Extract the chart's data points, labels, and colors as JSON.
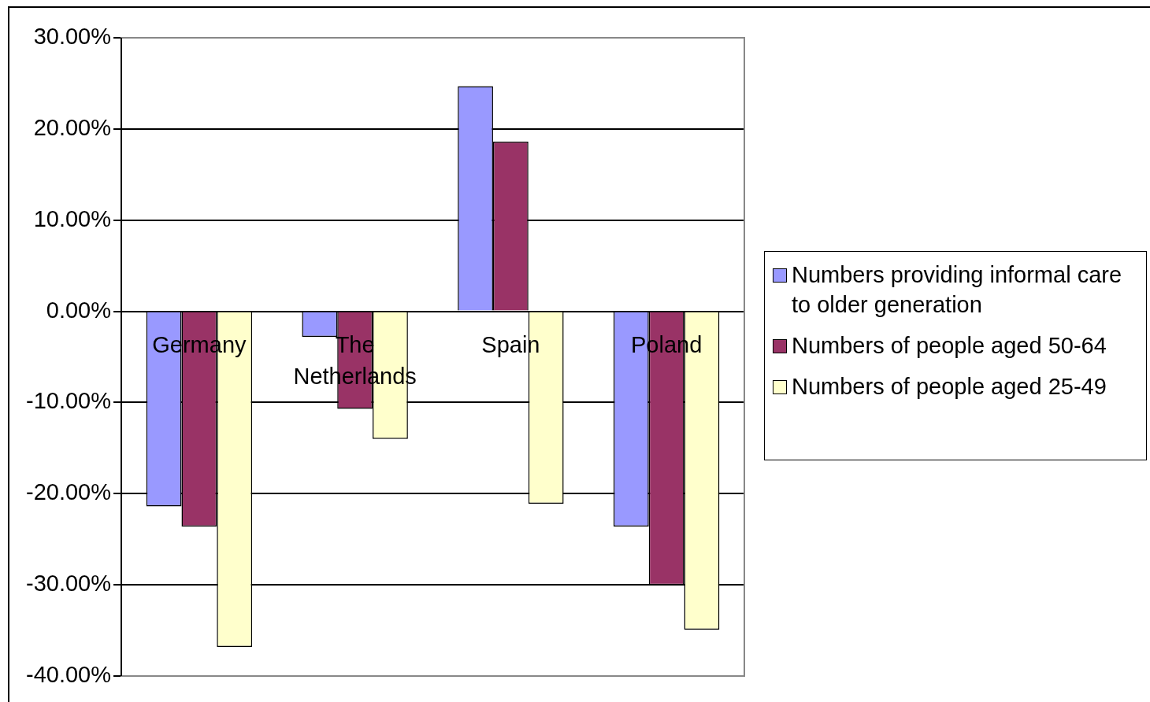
{
  "chart_data": {
    "type": "bar",
    "categories": [
      "Germany",
      "The Netherlands",
      "Spain",
      "Poland"
    ],
    "series": [
      {
        "name": "Numbers providing informal care to older generation",
        "color": "#9999ff",
        "values": [
          -21.4,
          -2.8,
          24.7,
          -23.6
        ]
      },
      {
        "name": "Numbers of people aged 50-64",
        "color": "#993366",
        "values": [
          -23.6,
          -10.7,
          18.6,
          -30.0
        ]
      },
      {
        "name": "Numbers of people aged 25-49",
        "color": "#ffffcc",
        "values": [
          -36.8,
          -14.0,
          -21.1,
          -34.9
        ]
      }
    ],
    "ylim": [
      -40,
      30
    ],
    "yticks": [
      {
        "value": 30,
        "label": "30.00%"
      },
      {
        "value": 20,
        "label": "20.00%"
      },
      {
        "value": 10,
        "label": "10.00%"
      },
      {
        "value": 0,
        "label": "0.00%"
      },
      {
        "value": -10,
        "label": "-10.00%"
      },
      {
        "value": -20,
        "label": "-20.00%"
      },
      {
        "value": -30,
        "label": "-30.00%"
      },
      {
        "value": -40,
        "label": "-40.00%"
      }
    ],
    "grid": "y",
    "legend": "right"
  }
}
